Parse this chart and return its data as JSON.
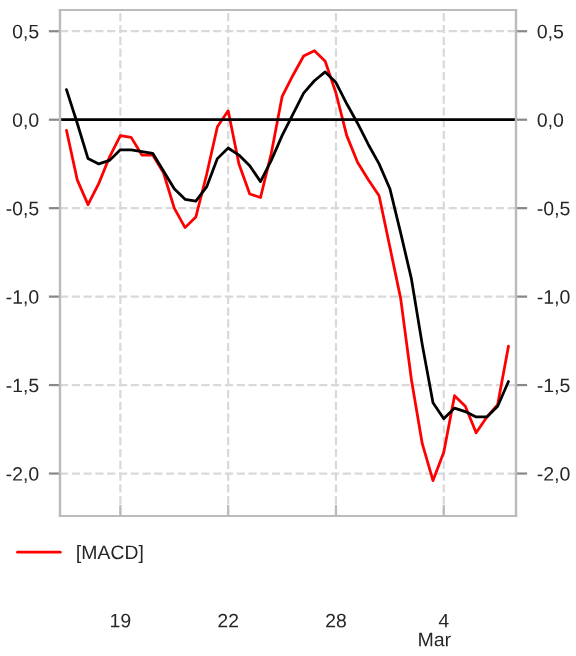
{
  "chart_data": {
    "type": "line",
    "categories": [
      null,
      null,
      null,
      null,
      null,
      "19",
      null,
      null,
      null,
      null,
      null,
      null,
      null,
      null,
      null,
      "22",
      null,
      null,
      null,
      null,
      null,
      null,
      null,
      null,
      null,
      "28",
      null,
      null,
      null,
      null,
      null,
      null,
      null,
      null,
      null,
      "4",
      null,
      null,
      null,
      null,
      null,
      null
    ],
    "ylim": [
      -2.24,
      0.62
    ],
    "yticks": [
      {
        "value": 0.5,
        "label": "0,5"
      },
      {
        "value": 0,
        "label": "0,0"
      },
      {
        "value": -0.5,
        "label": "-0,5"
      },
      {
        "value": -1,
        "label": "-1,0"
      },
      {
        "value": -1.5,
        "label": "-1,5"
      },
      {
        "value": -2,
        "label": "-2,0"
      }
    ],
    "y2lim": [
      -2.24,
      0.62
    ],
    "y2ticks": [
      {
        "value": 0.5,
        "label": "0,5"
      },
      {
        "value": 0,
        "label": "0,0"
      },
      {
        "value": -0.5,
        "label": "-0,5"
      },
      {
        "value": -1,
        "label": "-1,0"
      },
      {
        "value": -1.5,
        "label": "-1,5"
      },
      {
        "value": -2,
        "label": "-2,0"
      }
    ],
    "grid": true,
    "legend": "bottom",
    "annotations": [
      "Mar"
    ],
    "ref_lines": [
      {
        "axis": "y",
        "value": 0,
        "color": "#000000"
      }
    ],
    "series": [
      {
        "name": "[MACD]",
        "color": "#ff0000",
        "values": [
          -0.06,
          -0.34,
          -0.48,
          -0.36,
          -0.21,
          -0.09,
          -0.1,
          -0.2,
          -0.2,
          -0.3,
          -0.5,
          -0.61,
          -0.55,
          -0.31,
          -0.04,
          0.05,
          -0.25,
          -0.42,
          -0.44,
          -0.19,
          0.13,
          0.25,
          0.36,
          0.39,
          0.33,
          0.15,
          -0.09,
          -0.24,
          -0.34,
          -0.43,
          -0.72,
          -1.01,
          -1.47,
          -1.83,
          -2.04,
          -1.88,
          -1.56,
          -1.62,
          -1.77,
          -1.68,
          -1.61,
          -1.28
        ]
      },
      {
        "color": "#000000",
        "values": [
          0.17,
          -0.02,
          -0.22,
          -0.25,
          -0.23,
          -0.17,
          -0.17,
          -0.18,
          -0.19,
          -0.29,
          -0.39,
          -0.45,
          -0.46,
          -0.38,
          -0.22,
          -0.16,
          -0.2,
          -0.26,
          -0.35,
          -0.23,
          -0.09,
          0.03,
          0.15,
          0.22,
          0.27,
          0.21,
          0.09,
          -0.02,
          -0.14,
          -0.25,
          -0.39,
          -0.64,
          -0.9,
          -1.27,
          -1.6,
          -1.69,
          -1.63,
          -1.65,
          -1.68,
          -1.68,
          -1.62,
          -1.48
        ]
      }
    ]
  }
}
